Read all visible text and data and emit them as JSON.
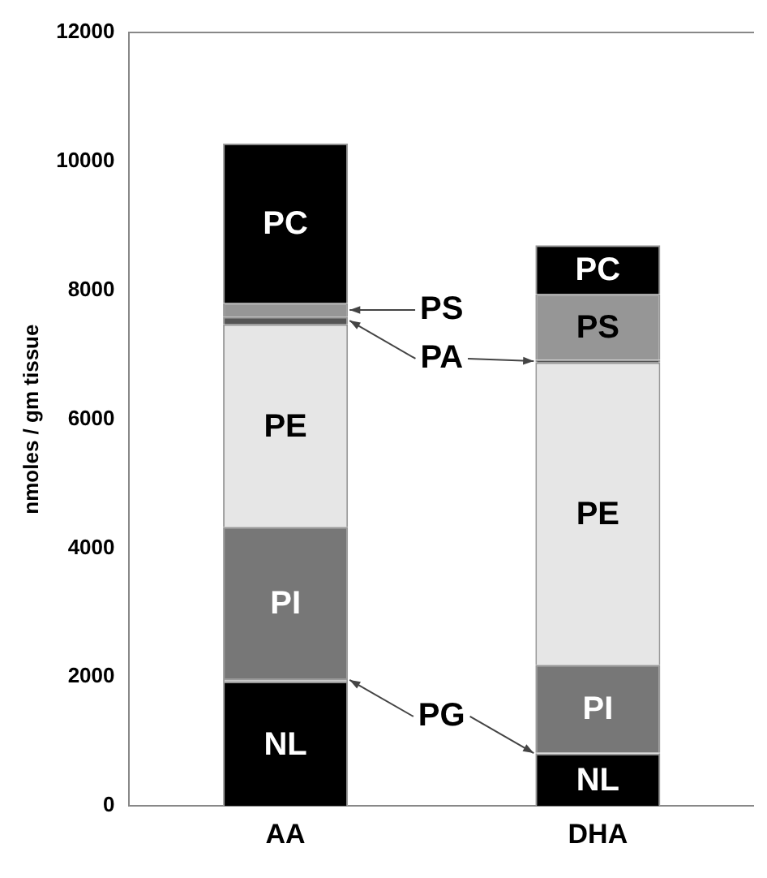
{
  "chart_data": {
    "type": "bar",
    "stacked": true,
    "ylabel": "nmoles / gm tissue",
    "categories": [
      "AA",
      "DHA"
    ],
    "ylim": [
      0,
      12000
    ],
    "yticks": [
      0,
      2000,
      4000,
      6000,
      8000,
      10000,
      12000
    ],
    "grid": false,
    "legend": false,
    "series": [
      {
        "name": "NL",
        "color": "#000000",
        "values": [
          1930,
          810
        ]
      },
      {
        "name": "PG",
        "color": "#c8c8c8",
        "values": [
          50,
          20
        ]
      },
      {
        "name": "PI",
        "color": "#777777",
        "values": [
          2350,
          1360
        ]
      },
      {
        "name": "PE",
        "color": "#e6e6e6",
        "values": [
          3140,
          4690
        ]
      },
      {
        "name": "PA",
        "color": "#555555",
        "values": [
          120,
          40
        ]
      },
      {
        "name": "PS",
        "color": "#969696",
        "values": [
          210,
          1020
        ]
      },
      {
        "name": "PC",
        "color": "#000000",
        "values": [
          2480,
          760
        ]
      }
    ]
  }
}
